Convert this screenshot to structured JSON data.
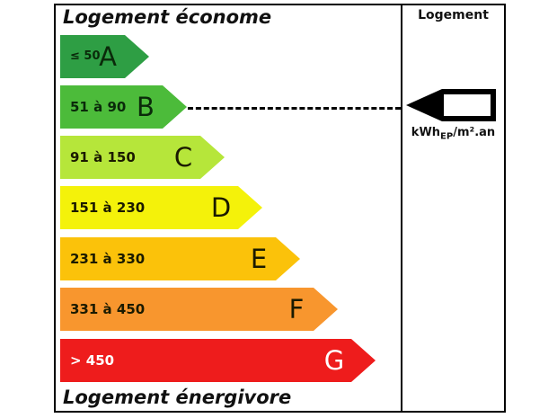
{
  "titles": {
    "top": "Logement économe",
    "bottom": "Logement énergivore",
    "column_header": "Logement"
  },
  "classes": [
    {
      "letter": "A",
      "range": "≤ 50",
      "color": "#2e9e44",
      "text_color": "#0a2a0a"
    },
    {
      "letter": "B",
      "range": "51 à 90",
      "color": "#4cbb3a",
      "text_color": "#0a2a0a"
    },
    {
      "letter": "C",
      "range": "91 à 150",
      "color": "#b6e63a",
      "text_color": "#1a1a00"
    },
    {
      "letter": "D",
      "range": "151 à 230",
      "color": "#f4f20a",
      "text_color": "#1a1a00"
    },
    {
      "letter": "E",
      "range": "231 à 330",
      "color": "#fbc20a",
      "text_color": "#1a1a00"
    },
    {
      "letter": "F",
      "range": "331 à 450",
      "color": "#f8962e",
      "text_color": "#1a1a00"
    },
    {
      "letter": "G",
      "range": "> 450",
      "color": "#ee1c1c",
      "text_color": "#ffffff"
    }
  ],
  "current_class": "B",
  "current_value": "",
  "unit": {
    "base": "kWh",
    "sub": "EP",
    "suffix": "/m².an"
  }
}
